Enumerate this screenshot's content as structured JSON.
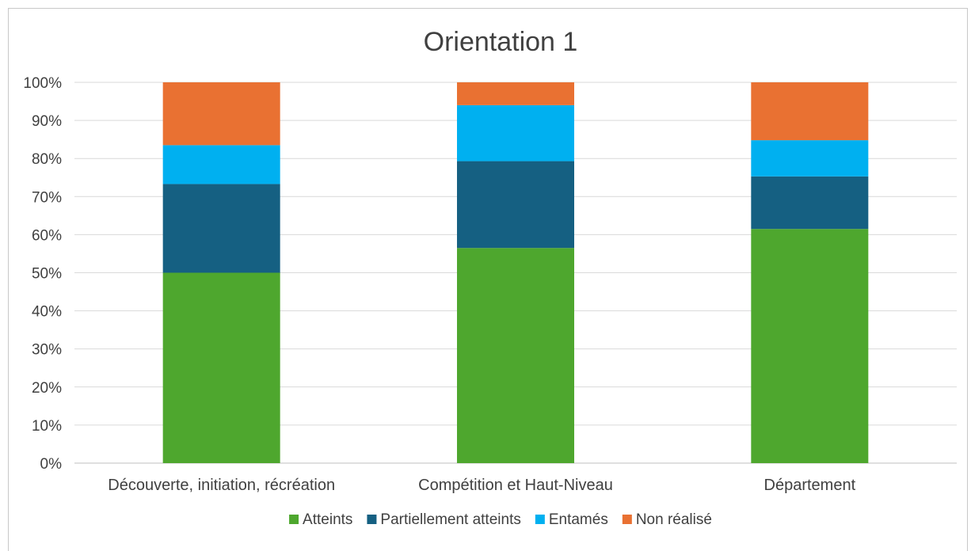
{
  "chart_data": {
    "type": "bar",
    "stacked": "percent",
    "title": "Orientation 1",
    "xlabel": "",
    "ylabel": "",
    "ylim": [
      0,
      100
    ],
    "y_ticks": [
      "0%",
      "10%",
      "20%",
      "30%",
      "40%",
      "50%",
      "60%",
      "70%",
      "80%",
      "90%",
      "100%"
    ],
    "grid": true,
    "legend_position": "bottom",
    "categories": [
      "Découverte, initiation, récréation",
      "Compétition et Haut-Niveau",
      "Département"
    ],
    "series": [
      {
        "name": "Atteints",
        "color": "#4ea72e",
        "values": [
          50,
          56.5,
          61.5
        ]
      },
      {
        "name": "Partiellement atteints",
        "color": "#156082",
        "values": [
          23.3,
          22.8,
          13.8
        ]
      },
      {
        "name": "Entamés",
        "color": "#00b0f0",
        "values": [
          10.2,
          14.7,
          9.5
        ]
      },
      {
        "name": "Non réalisé",
        "color": "#e97132",
        "values": [
          16.5,
          6,
          15.2
        ]
      }
    ]
  }
}
